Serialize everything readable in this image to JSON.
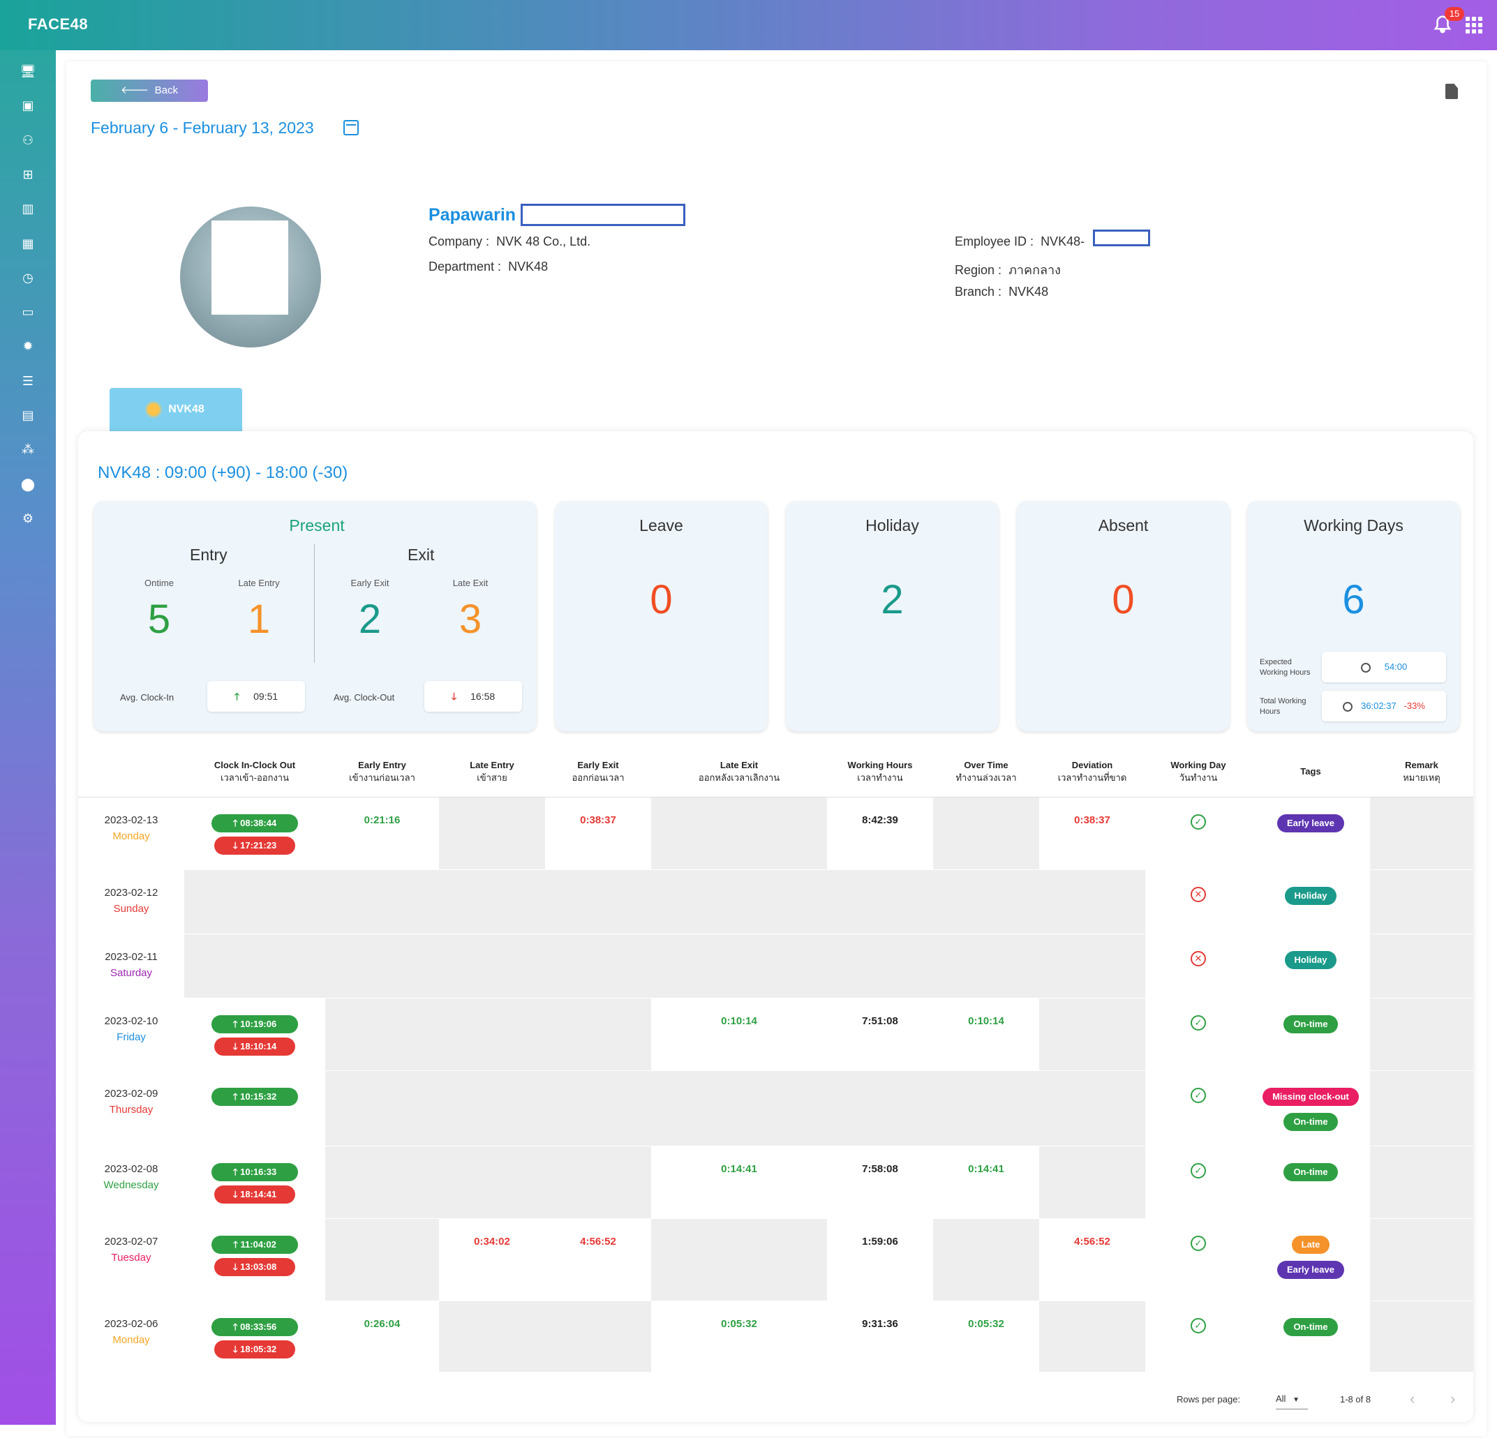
{
  "app": {
    "brand": "FACE48",
    "notifications": "15"
  },
  "colors": {
    "accent": "#1b8fe0",
    "green": "#2ea043",
    "red": "#e53935",
    "orange": "#f5922a",
    "purple": "#5e35b1",
    "teal": "#1a9a8a",
    "magenta": "#e91e63"
  },
  "sidebar_icons": [
    "monitor-icon",
    "contact-card-icon",
    "user-add-icon",
    "org-chart-icon",
    "bar-chart-icon",
    "calendar-icon",
    "history-icon",
    "chat-icon",
    "alarm-icon",
    "settings-list-icon",
    "building-icon",
    "network-icon",
    "location-pin-icon",
    "gears-icon"
  ],
  "header": {
    "back_label": "Back",
    "date_range": "February 6 - February 13, 2023"
  },
  "employee": {
    "name": "Papawarin",
    "company_label": "Company :",
    "company": "NVK 48 Co., Ltd.",
    "department_label": "Department :",
    "department": "NVK48",
    "employee_id_label": "Employee ID :",
    "employee_id": "NVK48-",
    "region_label": "Region :",
    "region": "ภาคกลาง",
    "branch_label": "Branch :",
    "branch": "NVK48"
  },
  "tab": {
    "label": "NVK48"
  },
  "shift": {
    "title": "NVK48 : 09:00 (+90) - 18:00 (-30)"
  },
  "summary": {
    "present": {
      "title": "Present",
      "entry_label": "Entry",
      "exit_label": "Exit",
      "ontime_label": "Ontime",
      "ontime": "5",
      "late_entry_label": "Late Entry",
      "late_entry": "1",
      "early_exit_label": "Early Exit",
      "early_exit": "2",
      "late_exit_label": "Late Exit",
      "late_exit": "3",
      "avg_in_label": "Avg. Clock-In",
      "avg_in": "09:51",
      "avg_out_label": "Avg. Clock-Out",
      "avg_out": "16:58"
    },
    "leave": {
      "title": "Leave",
      "value": "0"
    },
    "holiday": {
      "title": "Holiday",
      "value": "2"
    },
    "absent": {
      "title": "Absent",
      "value": "0"
    },
    "working_days": {
      "title": "Working Days",
      "value": "6",
      "expected_label_1": "Expected",
      "expected_label_2": "Working Hours",
      "expected": "54:00",
      "total_label_1": "Total Working",
      "total_label_2": "Hours",
      "total": "36:02:37",
      "deviation": "-33%"
    }
  },
  "table": {
    "headers": [
      {
        "en": "",
        "th": ""
      },
      {
        "en": "Clock In-Clock Out",
        "th": "เวลาเข้า-ออกงาน"
      },
      {
        "en": "Early Entry",
        "th": "เข้างานก่อนเวลา"
      },
      {
        "en": "Late Entry",
        "th": "เข้าสาย"
      },
      {
        "en": "Early Exit",
        "th": "ออกก่อนเวลา"
      },
      {
        "en": "Late Exit",
        "th": "ออกหลังเวลาเลิกงาน"
      },
      {
        "en": "Working Hours",
        "th": "เวลาทำงาน"
      },
      {
        "en": "Over Time",
        "th": "ทำงานล่วงเวลา"
      },
      {
        "en": "Deviation",
        "th": "เวลาทำงานที่ขาด"
      },
      {
        "en": "Working Day",
        "th": "วันทำงาน"
      },
      {
        "en": "Tags",
        "th": ""
      },
      {
        "en": "Remark",
        "th": "หมายเหตุ"
      }
    ],
    "rows": [
      {
        "date": "2023-02-13",
        "dow": "Monday",
        "dow_color": "#f5a623",
        "in": "08:38:44",
        "out": "17:21:23",
        "early_entry": "0:21:16",
        "late_entry": "",
        "early_exit": "0:38:37",
        "late_exit": "",
        "hours": "8:42:39",
        "ot": "",
        "deviation": "0:38:37",
        "working": true,
        "tags": [
          {
            "label": "Early leave",
            "color": "#5e35b1"
          }
        ],
        "remark": ""
      },
      {
        "date": "2023-02-12",
        "dow": "Sunday",
        "dow_color": "#e53935",
        "in": "",
        "out": "",
        "early_entry": "",
        "late_entry": "",
        "early_exit": "",
        "late_exit": "",
        "hours": "",
        "ot": "",
        "deviation": "",
        "working": false,
        "tags": [
          {
            "label": "Holiday",
            "color": "#1a9a8a"
          }
        ],
        "remark": "",
        "holiday": true
      },
      {
        "date": "2023-02-11",
        "dow": "Saturday",
        "dow_color": "#9c27b0",
        "in": "",
        "out": "",
        "early_entry": "",
        "late_entry": "",
        "early_exit": "",
        "late_exit": "",
        "hours": "",
        "ot": "",
        "deviation": "",
        "working": false,
        "tags": [
          {
            "label": "Holiday",
            "color": "#1a9a8a"
          }
        ],
        "remark": "",
        "holiday": true
      },
      {
        "date": "2023-02-10",
        "dow": "Friday",
        "dow_color": "#1b8fe0",
        "in": "10:19:06",
        "out": "18:10:14",
        "early_entry": "",
        "late_entry": "",
        "early_exit": "",
        "late_exit": "0:10:14",
        "hours": "7:51:08",
        "ot": "0:10:14",
        "deviation": "",
        "working": true,
        "tags": [
          {
            "label": "On-time",
            "color": "#2ea043"
          }
        ],
        "remark": ""
      },
      {
        "date": "2023-02-09",
        "dow": "Thursday",
        "dow_color": "#e53935",
        "in": "10:15:32",
        "out": "",
        "early_entry": "",
        "late_entry": "",
        "early_exit": "",
        "late_exit": "",
        "hours": "",
        "ot": "",
        "deviation": "",
        "working": true,
        "tags": [
          {
            "label": "Missing clock-out",
            "color": "#e91e63"
          },
          {
            "label": "On-time",
            "color": "#2ea043"
          }
        ],
        "remark": "",
        "missing": true
      },
      {
        "date": "2023-02-08",
        "dow": "Wednesday",
        "dow_color": "#2ea043",
        "in": "10:16:33",
        "out": "18:14:41",
        "early_entry": "",
        "late_entry": "",
        "early_exit": "",
        "late_exit": "0:14:41",
        "hours": "7:58:08",
        "ot": "0:14:41",
        "deviation": "",
        "working": true,
        "tags": [
          {
            "label": "On-time",
            "color": "#2ea043"
          }
        ],
        "remark": ""
      },
      {
        "date": "2023-02-07",
        "dow": "Tuesday",
        "dow_color": "#e91e63",
        "in": "11:04:02",
        "out": "13:03:08",
        "early_entry": "",
        "late_entry": "0:34:02",
        "early_exit": "4:56:52",
        "late_exit": "",
        "hours": "1:59:06",
        "ot": "",
        "deviation": "4:56:52",
        "working": true,
        "tags": [
          {
            "label": "Late",
            "color": "#f5922a"
          },
          {
            "label": "Early leave",
            "color": "#5e35b1"
          }
        ],
        "remark": ""
      },
      {
        "date": "2023-02-06",
        "dow": "Monday",
        "dow_color": "#f5a623",
        "in": "08:33:56",
        "out": "18:05:32",
        "early_entry": "0:26:04",
        "late_entry": "",
        "early_exit": "",
        "late_exit": "0:05:32",
        "hours": "9:31:36",
        "ot": "0:05:32",
        "deviation": "",
        "working": true,
        "tags": [
          {
            "label": "On-time",
            "color": "#2ea043"
          }
        ],
        "remark": ""
      }
    ]
  },
  "pagination": {
    "rows_label": "Rows per page:",
    "rows_value": "All",
    "count": "1-8 of 8"
  }
}
